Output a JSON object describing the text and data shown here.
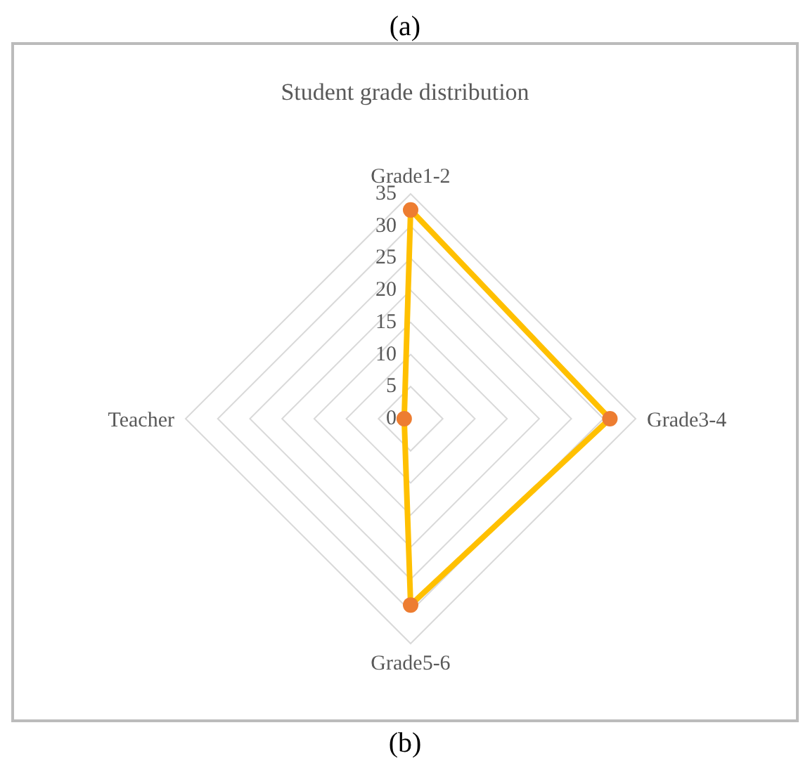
{
  "chart_data": {
    "type": "radar",
    "title": "Student grade distribution",
    "annotations": [
      "(a)",
      "(b)"
    ],
    "categories": [
      "Grade1-2",
      "Grade3-4",
      "Grade5-6",
      "Teacher"
    ],
    "series": [
      {
        "color": "#ffc000",
        "colors": [
          "#ed7d31",
          "#ed7d31",
          "#ed7d31",
          "#ed7d31"
        ],
        "values": [
          32.5,
          31,
          29,
          1
        ]
      }
    ],
    "ylim": [
      0,
      35
    ],
    "yticks": [
      0,
      5,
      10,
      15,
      20,
      25,
      30,
      35
    ],
    "marker": "circle",
    "grid": true
  }
}
